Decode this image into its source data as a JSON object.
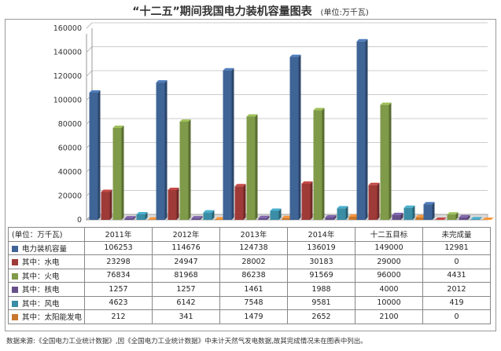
{
  "title": "“十二五”期间我国电力装机容量图表",
  "unit_note": "(单位:万千瓦)",
  "table": {
    "corner_label": "(单位：万千瓦)",
    "columns": [
      "2011年",
      "2012年",
      "2013年",
      "2014年",
      "十二五目标",
      "未完成量"
    ],
    "rows": [
      {
        "label": "电力装机容量",
        "values": [
          "106253",
          "114676",
          "124738",
          "136019",
          "149000",
          "12981"
        ]
      },
      {
        "label": "其中：水电",
        "values": [
          "23298",
          "24947",
          "28002",
          "30183",
          "29000",
          "0"
        ]
      },
      {
        "label": "其中：火电",
        "values": [
          "76834",
          "81968",
          "86238",
          "91569",
          "96000",
          "4431"
        ]
      },
      {
        "label": "其中：核电",
        "values": [
          "1257",
          "1257",
          "1461",
          "1988",
          "4000",
          "2012"
        ]
      },
      {
        "label": "其中：风电",
        "values": [
          "4623",
          "6142",
          "7548",
          "9581",
          "10000",
          "419"
        ]
      },
      {
        "label": "其中：太阳能发电",
        "values": [
          "212",
          "341",
          "1479",
          "2652",
          "2100",
          "0"
        ]
      }
    ]
  },
  "footnote": "数据来源:《全国电力工业统计数据》,因《全国电力工业统计数据》中未计天然气发电数据,故其完成情况未在图表中列出。",
  "chart_data": {
    "type": "bar",
    "categories": [
      "2011年",
      "2012年",
      "2013年",
      "2014年",
      "十二五目标",
      "未完成量"
    ],
    "series": [
      {
        "name": "电力装机容量",
        "color": "#3f6496",
        "values": [
          106253,
          114676,
          124738,
          136019,
          149000,
          12981
        ]
      },
      {
        "name": "其中：水电",
        "color": "#9e3a38",
        "values": [
          23298,
          24947,
          28002,
          30183,
          29000,
          0
        ]
      },
      {
        "name": "其中：火电",
        "color": "#7f9a48",
        "values": [
          76834,
          81968,
          86238,
          91569,
          96000,
          4431
        ]
      },
      {
        "name": "其中：核电",
        "color": "#66508a",
        "values": [
          1257,
          1257,
          1461,
          1988,
          4000,
          2012
        ]
      },
      {
        "name": "其中：风电",
        "color": "#3a8da5",
        "values": [
          4623,
          6142,
          7548,
          9581,
          10000,
          419
        ]
      },
      {
        "name": "其中：太阳能发电",
        "color": "#c8782e",
        "values": [
          212,
          341,
          1479,
          2652,
          2100,
          0
        ]
      }
    ],
    "yticks": [
      "0",
      "20000",
      "40000",
      "60000",
      "80000",
      "100000",
      "120000",
      "140000",
      "160000"
    ],
    "ylim": [
      0,
      160000
    ],
    "grid": true,
    "legend": "table"
  }
}
